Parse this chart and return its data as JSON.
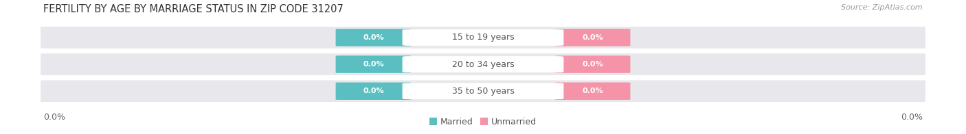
{
  "title": "FERTILITY BY AGE BY MARRIAGE STATUS IN ZIP CODE 31207",
  "source": "Source: ZipAtlas.com",
  "categories": [
    "15 to 19 years",
    "20 to 34 years",
    "35 to 50 years"
  ],
  "married_values": [
    "0.0%",
    "0.0%",
    "0.0%"
  ],
  "unmarried_values": [
    "0.0%",
    "0.0%",
    "0.0%"
  ],
  "married_color": "#5bbfc2",
  "unmarried_color": "#f593a8",
  "bar_bg_color": "#e8e8ec",
  "bar_bg_color2": "#f0f0f4",
  "bg_color": "#ffffff",
  "left_axis_label": "0.0%",
  "right_axis_label": "0.0%",
  "title_fontsize": 10.5,
  "source_fontsize": 8,
  "axis_label_fontsize": 9,
  "legend_fontsize": 9,
  "category_fontsize": 9,
  "value_fontsize": 8
}
